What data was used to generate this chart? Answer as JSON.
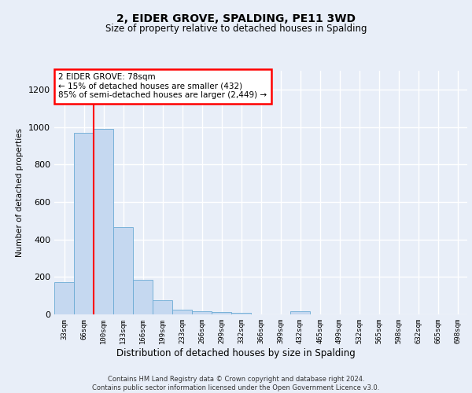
{
  "title1": "2, EIDER GROVE, SPALDING, PE11 3WD",
  "title2": "Size of property relative to detached houses in Spalding",
  "xlabel": "Distribution of detached houses by size in Spalding",
  "ylabel": "Number of detached properties",
  "bar_color": "#c5d8f0",
  "bar_edge_color": "#6aaad4",
  "categories": [
    "33sqm",
    "66sqm",
    "100sqm",
    "133sqm",
    "166sqm",
    "199sqm",
    "233sqm",
    "266sqm",
    "299sqm",
    "332sqm",
    "366sqm",
    "399sqm",
    "432sqm",
    "465sqm",
    "499sqm",
    "532sqm",
    "565sqm",
    "598sqm",
    "632sqm",
    "665sqm",
    "698sqm"
  ],
  "values": [
    170,
    970,
    990,
    465,
    185,
    75,
    25,
    18,
    12,
    8,
    0,
    0,
    18,
    0,
    0,
    0,
    0,
    0,
    0,
    0,
    0
  ],
  "ylim": [
    0,
    1300
  ],
  "yticks": [
    0,
    200,
    400,
    600,
    800,
    1000,
    1200
  ],
  "annotation_text": "2 EIDER GROVE: 78sqm\n← 15% of detached houses are smaller (432)\n85% of semi-detached houses are larger (2,449) →",
  "annotation_box_color": "white",
  "annotation_box_edge": "red",
  "vline_color": "red",
  "vline_x": 1.5,
  "background_color": "#e8eef8",
  "grid_color": "white",
  "footer": "Contains HM Land Registry data © Crown copyright and database right 2024.\nContains public sector information licensed under the Open Government Licence v3.0."
}
